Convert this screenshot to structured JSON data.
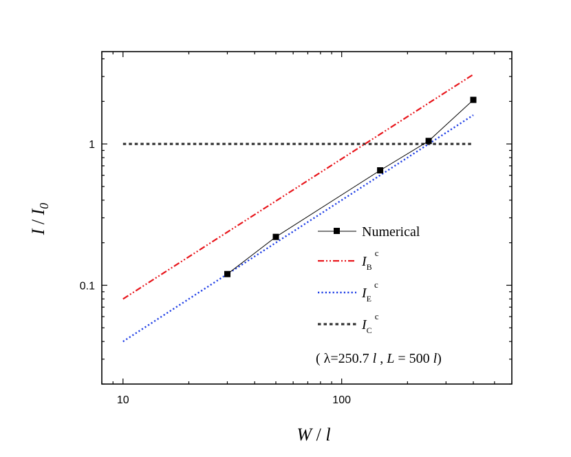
{
  "chart_data": {
    "type": "line",
    "xscale": "log",
    "yscale": "log",
    "xlim": [
      8,
      600
    ],
    "ylim": [
      0.02,
      4.5
    ],
    "xticks": [
      10,
      100
    ],
    "xtick_labels": [
      "10",
      "100"
    ],
    "yticks": [
      0.1,
      1
    ],
    "ytick_labels": [
      "0.1",
      "1"
    ],
    "xlabel": {
      "main": "W",
      "sep": " / ",
      "unit": "l"
    },
    "ylabel": {
      "main": "I",
      "sep": " / ",
      "unit": "I",
      "sub": "0"
    },
    "series": [
      {
        "name": "Numerical",
        "style": "solid-marker",
        "color": "#000000",
        "x": [
          30,
          50,
          150,
          250,
          400
        ],
        "y": [
          0.12,
          0.22,
          0.65,
          1.05,
          2.05
        ]
      },
      {
        "name": "I_B^c",
        "symbol": "I",
        "sub": "B",
        "sup": "c",
        "style": "dash-dot-dot",
        "color": "#e8141a",
        "x": [
          10,
          400
        ],
        "y": [
          0.08,
          3.1
        ]
      },
      {
        "name": "I_E^c",
        "symbol": "I",
        "sub": "E",
        "sup": "c",
        "style": "dotted",
        "color": "#1f3fe6",
        "x": [
          10,
          400
        ],
        "y": [
          0.04,
          1.6
        ]
      },
      {
        "name": "I_C^c",
        "symbol": "I",
        "sub": "C",
        "sup": "c",
        "style": "dashed",
        "color": "#333333",
        "x": [
          10,
          400
        ],
        "y": [
          1,
          1
        ]
      }
    ],
    "annotation": {
      "open": "( λ=250.7 ",
      "l1": "l",
      "comma": " , ",
      "L": "L",
      "eq": " = 500 ",
      "l2": "l",
      "close": ")"
    }
  }
}
